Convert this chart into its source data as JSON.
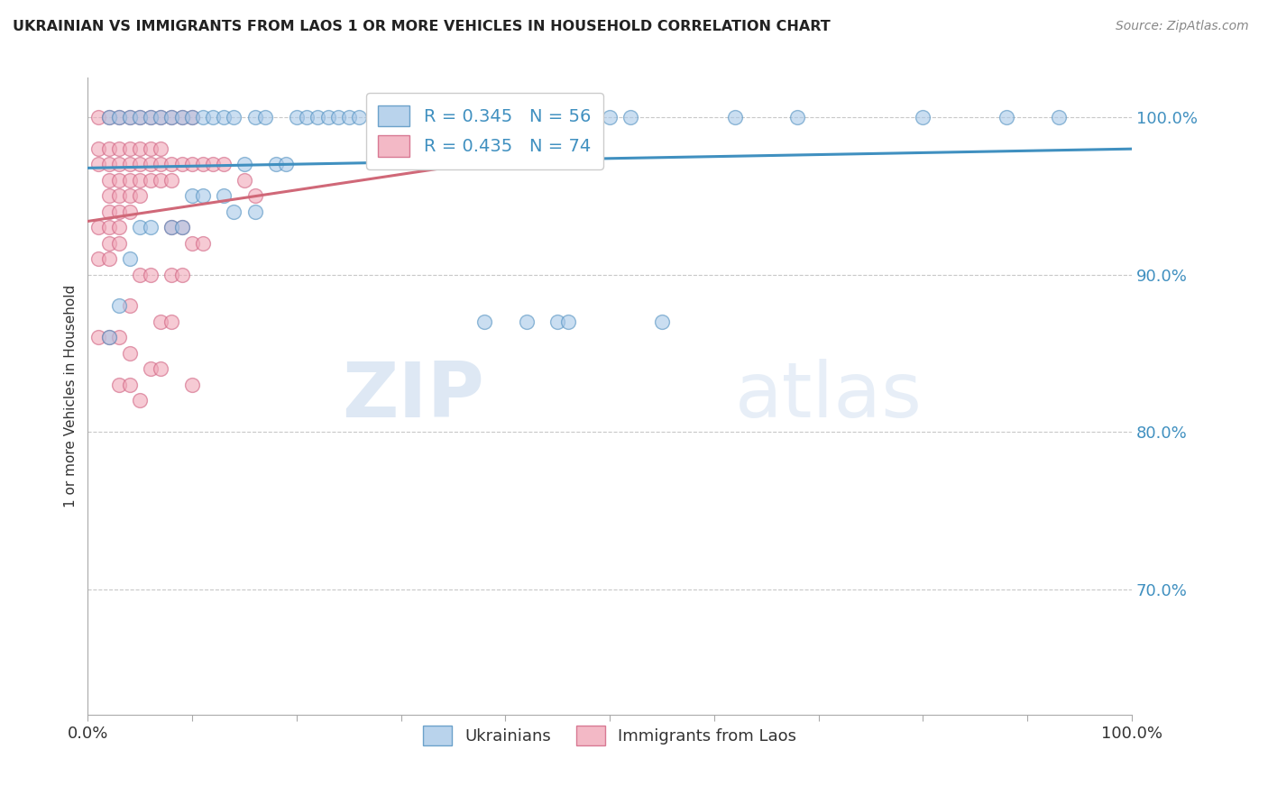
{
  "title": "UKRAINIAN VS IMMIGRANTS FROM LAOS 1 OR MORE VEHICLES IN HOUSEHOLD CORRELATION CHART",
  "source": "Source: ZipAtlas.com",
  "ylabel": "1 or more Vehicles in Household",
  "xlim": [
    0.0,
    1.0
  ],
  "ylim": [
    0.62,
    1.025
  ],
  "grid_yticks": [
    0.7,
    0.8,
    0.9,
    1.0
  ],
  "grid_color": "#c8c8c8",
  "background_color": "#ffffff",
  "blue_color": "#a8c8e8",
  "pink_color": "#f0a8b8",
  "blue_edge_color": "#5090c0",
  "pink_edge_color": "#d06080",
  "blue_line_color": "#4090c0",
  "pink_line_color": "#d06878",
  "legend_blue_label": "R = 0.345   N = 56",
  "legend_pink_label": "R = 0.435   N = 74",
  "watermark_zip": "ZIP",
  "watermark_atlas": "atlas",
  "blue_R": 0.345,
  "blue_N": 56,
  "pink_R": 0.435,
  "pink_N": 74,
  "blue_scatter": [
    [
      0.02,
      1.0
    ],
    [
      0.03,
      1.0
    ],
    [
      0.04,
      1.0
    ],
    [
      0.05,
      1.0
    ],
    [
      0.06,
      1.0
    ],
    [
      0.07,
      1.0
    ],
    [
      0.08,
      1.0
    ],
    [
      0.09,
      1.0
    ],
    [
      0.1,
      1.0
    ],
    [
      0.11,
      1.0
    ],
    [
      0.12,
      1.0
    ],
    [
      0.13,
      1.0
    ],
    [
      0.14,
      1.0
    ],
    [
      0.16,
      1.0
    ],
    [
      0.17,
      1.0
    ],
    [
      0.2,
      1.0
    ],
    [
      0.21,
      1.0
    ],
    [
      0.22,
      1.0
    ],
    [
      0.23,
      1.0
    ],
    [
      0.24,
      1.0
    ],
    [
      0.25,
      1.0
    ],
    [
      0.26,
      1.0
    ],
    [
      0.28,
      1.0
    ],
    [
      0.29,
      1.0
    ],
    [
      0.3,
      1.0
    ],
    [
      0.31,
      1.0
    ],
    [
      0.32,
      1.0
    ],
    [
      0.33,
      1.0
    ],
    [
      0.34,
      1.0
    ],
    [
      0.5,
      1.0
    ],
    [
      0.52,
      1.0
    ],
    [
      0.62,
      1.0
    ],
    [
      0.68,
      1.0
    ],
    [
      0.8,
      1.0
    ],
    [
      0.88,
      1.0
    ],
    [
      0.93,
      1.0
    ],
    [
      0.15,
      0.97
    ],
    [
      0.18,
      0.97
    ],
    [
      0.19,
      0.97
    ],
    [
      0.1,
      0.95
    ],
    [
      0.11,
      0.95
    ],
    [
      0.13,
      0.95
    ],
    [
      0.14,
      0.94
    ],
    [
      0.16,
      0.94
    ],
    [
      0.05,
      0.93
    ],
    [
      0.06,
      0.93
    ],
    [
      0.08,
      0.93
    ],
    [
      0.09,
      0.93
    ],
    [
      0.04,
      0.91
    ],
    [
      0.03,
      0.88
    ],
    [
      0.02,
      0.86
    ],
    [
      0.38,
      0.87
    ],
    [
      0.42,
      0.87
    ],
    [
      0.45,
      0.87
    ],
    [
      0.46,
      0.87
    ],
    [
      0.55,
      0.87
    ]
  ],
  "pink_scatter": [
    [
      0.01,
      1.0
    ],
    [
      0.02,
      1.0
    ],
    [
      0.03,
      1.0
    ],
    [
      0.04,
      1.0
    ],
    [
      0.05,
      1.0
    ],
    [
      0.06,
      1.0
    ],
    [
      0.07,
      1.0
    ],
    [
      0.08,
      1.0
    ],
    [
      0.09,
      1.0
    ],
    [
      0.1,
      1.0
    ],
    [
      0.01,
      0.98
    ],
    [
      0.02,
      0.98
    ],
    [
      0.03,
      0.98
    ],
    [
      0.04,
      0.98
    ],
    [
      0.05,
      0.98
    ],
    [
      0.06,
      0.98
    ],
    [
      0.07,
      0.98
    ],
    [
      0.01,
      0.97
    ],
    [
      0.02,
      0.97
    ],
    [
      0.03,
      0.97
    ],
    [
      0.04,
      0.97
    ],
    [
      0.05,
      0.97
    ],
    [
      0.06,
      0.97
    ],
    [
      0.07,
      0.97
    ],
    [
      0.08,
      0.97
    ],
    [
      0.09,
      0.97
    ],
    [
      0.1,
      0.97
    ],
    [
      0.11,
      0.97
    ],
    [
      0.12,
      0.97
    ],
    [
      0.13,
      0.97
    ],
    [
      0.02,
      0.96
    ],
    [
      0.03,
      0.96
    ],
    [
      0.04,
      0.96
    ],
    [
      0.05,
      0.96
    ],
    [
      0.06,
      0.96
    ],
    [
      0.07,
      0.96
    ],
    [
      0.08,
      0.96
    ],
    [
      0.02,
      0.95
    ],
    [
      0.03,
      0.95
    ],
    [
      0.04,
      0.95
    ],
    [
      0.05,
      0.95
    ],
    [
      0.02,
      0.94
    ],
    [
      0.03,
      0.94
    ],
    [
      0.04,
      0.94
    ],
    [
      0.01,
      0.93
    ],
    [
      0.02,
      0.93
    ],
    [
      0.03,
      0.93
    ],
    [
      0.02,
      0.92
    ],
    [
      0.03,
      0.92
    ],
    [
      0.01,
      0.91
    ],
    [
      0.02,
      0.91
    ],
    [
      0.15,
      0.96
    ],
    [
      0.16,
      0.95
    ],
    [
      0.08,
      0.93
    ],
    [
      0.09,
      0.93
    ],
    [
      0.1,
      0.92
    ],
    [
      0.11,
      0.92
    ],
    [
      0.05,
      0.9
    ],
    [
      0.06,
      0.9
    ],
    [
      0.08,
      0.9
    ],
    [
      0.09,
      0.9
    ],
    [
      0.04,
      0.88
    ],
    [
      0.07,
      0.87
    ],
    [
      0.08,
      0.87
    ],
    [
      0.01,
      0.86
    ],
    [
      0.02,
      0.86
    ],
    [
      0.03,
      0.86
    ],
    [
      0.04,
      0.85
    ],
    [
      0.06,
      0.84
    ],
    [
      0.07,
      0.84
    ],
    [
      0.03,
      0.83
    ],
    [
      0.04,
      0.83
    ],
    [
      0.1,
      0.83
    ],
    [
      0.05,
      0.82
    ]
  ]
}
